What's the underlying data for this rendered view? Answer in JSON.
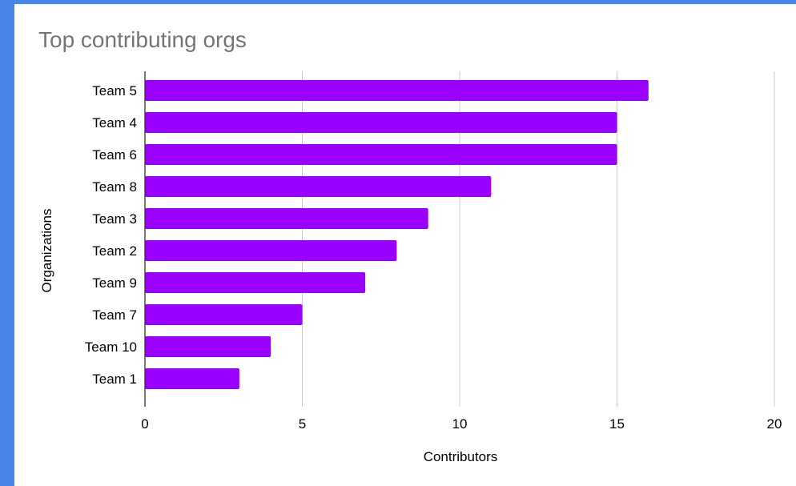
{
  "chart_data": {
    "type": "bar",
    "orientation": "horizontal",
    "title": "Top contributing orgs",
    "xlabel": "Contributors",
    "ylabel": "Organizations",
    "categories": [
      "Team 5",
      "Team 4",
      "Team 6",
      "Team 8",
      "Team 3",
      "Team 2",
      "Team 9",
      "Team 7",
      "Team 10",
      "Team 1"
    ],
    "values": [
      16,
      15,
      15,
      11,
      9,
      8,
      7,
      5,
      4,
      3
    ],
    "xlim": [
      0,
      20
    ],
    "xticks": [
      0,
      5,
      10,
      15,
      20
    ],
    "grid": "vertical",
    "legend": "none",
    "colors": {
      "bar": "#9900ff",
      "grid": "#cccccc",
      "axis": "#333333",
      "page_border": "#4a86e8"
    }
  }
}
